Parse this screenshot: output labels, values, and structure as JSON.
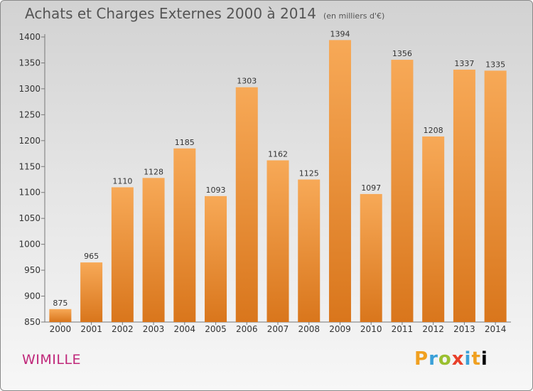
{
  "header": {
    "title": "Achats et Charges Externes 2000 à 2014",
    "subtitle": "(en milliers d'€)"
  },
  "footer": {
    "city": "WIMILLE",
    "logo_letters": [
      "P",
      "r",
      "o",
      "x",
      "i",
      "t",
      "i"
    ]
  },
  "colors": {
    "bar_top": "#f7a957",
    "bar_bottom": "#d9761c",
    "city": "#c0287a"
  },
  "chart_data": {
    "type": "bar",
    "title": "Achats et Charges Externes 2000 à 2014",
    "subtitle": "(en milliers d'€)",
    "categories": [
      "2000",
      "2001",
      "2002",
      "2003",
      "2004",
      "2005",
      "2006",
      "2007",
      "2008",
      "2009",
      "2010",
      "2011",
      "2012",
      "2013",
      "2014"
    ],
    "values": [
      875,
      965,
      1110,
      1128,
      1185,
      1093,
      1303,
      1162,
      1125,
      1394,
      1097,
      1356,
      1208,
      1337,
      1335
    ],
    "ylim": [
      850,
      1400
    ],
    "yticks": [
      850,
      900,
      950,
      1000,
      1050,
      1100,
      1150,
      1200,
      1250,
      1300,
      1350,
      1400
    ],
    "grid": false,
    "xlabel": "",
    "ylabel": ""
  }
}
